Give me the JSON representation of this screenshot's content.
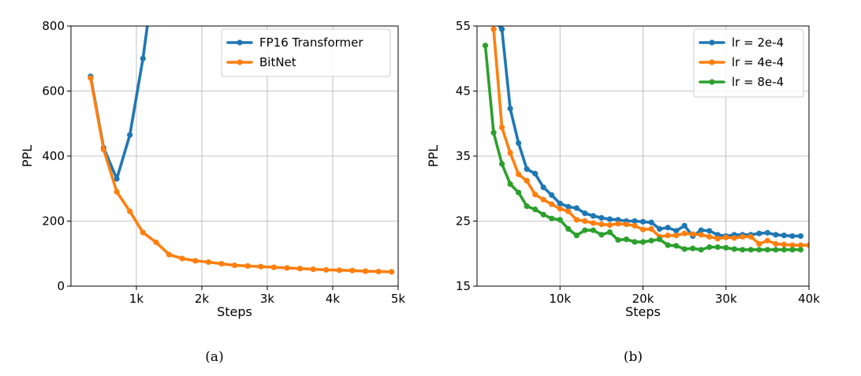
{
  "chart_data": [
    {
      "type": "line",
      "caption": "(a)",
      "xlabel": "Steps",
      "ylabel": "PPL",
      "xlim": [
        0,
        5000
      ],
      "ylim": [
        0,
        800
      ],
      "xticks": [
        1000,
        2000,
        3000,
        4000,
        5000
      ],
      "xtick_labels": [
        "1k",
        "2k",
        "3k",
        "4k",
        "5k"
      ],
      "yticks": [
        0,
        200,
        400,
        600,
        800
      ],
      "ytick_labels": [
        "0",
        "200",
        "400",
        "600",
        "800"
      ],
      "grid": true,
      "legend_position": "top-right",
      "series": [
        {
          "name": "FP16 Transformer",
          "color": "#1f77b4",
          "x": [
            300,
            500,
            700,
            900,
            1100,
            1300
          ],
          "y": [
            645,
            425,
            330,
            465,
            700,
            1000
          ]
        },
        {
          "name": "BitNet",
          "color": "#ff7f0e",
          "x": [
            300,
            500,
            700,
            900,
            1100,
            1300,
            1500,
            1700,
            1900,
            2100,
            2300,
            2500,
            2700,
            2900,
            3100,
            3300,
            3500,
            3700,
            3900,
            4100,
            4300,
            4500,
            4700,
            4900
          ],
          "y": [
            640,
            420,
            290,
            230,
            165,
            135,
            97,
            85,
            78,
            74,
            69,
            64,
            62,
            60,
            58,
            56,
            54,
            52,
            50,
            49,
            48,
            46,
            45,
            44
          ]
        }
      ]
    },
    {
      "type": "line",
      "caption": "(b)",
      "xlabel": "Steps",
      "ylabel": "PPL",
      "xlim": [
        0,
        40000
      ],
      "ylim": [
        15,
        55
      ],
      "xticks": [
        10000,
        20000,
        30000,
        40000
      ],
      "xtick_labels": [
        "10k",
        "20k",
        "30k",
        "40k"
      ],
      "yticks": [
        15,
        25,
        35,
        45,
        55
      ],
      "ytick_labels": [
        "15",
        "25",
        "35",
        "45",
        "55"
      ],
      "grid": true,
      "legend_position": "top-right",
      "series": [
        {
          "name": "lr = 2e-4",
          "color": "#1f77b4",
          "x": [
            2000,
            3000,
            4000,
            5000,
            6000,
            7000,
            8000,
            9000,
            10000,
            11000,
            12000,
            13000,
            14000,
            15000,
            16000,
            17000,
            18000,
            19000,
            20000,
            21000,
            22000,
            23000,
            24000,
            25000,
            26000,
            27000,
            28000,
            29000,
            30000,
            31000,
            32000,
            33000,
            34000,
            35000,
            36000,
            37000,
            38000,
            39000
          ],
          "y": [
            56,
            54.5,
            42.3,
            37.0,
            33.0,
            32.3,
            30.2,
            29.0,
            27.7,
            27.2,
            27.0,
            26.2,
            25.8,
            25.5,
            25.3,
            25.2,
            25.0,
            25.0,
            24.9,
            24.8,
            23.8,
            24.0,
            23.5,
            24.3,
            22.7,
            23.6,
            23.5,
            22.9,
            22.7,
            22.9,
            22.9,
            22.9,
            23.1,
            23.2,
            22.9,
            22.8,
            22.7,
            22.7
          ]
        },
        {
          "name": "lr = 4e-4",
          "color": "#ff7f0e",
          "x": [
            2000,
            3000,
            4000,
            5000,
            6000,
            7000,
            8000,
            9000,
            10000,
            11000,
            12000,
            13000,
            14000,
            15000,
            16000,
            17000,
            18000,
            19000,
            20000,
            21000,
            22000,
            23000,
            24000,
            25000,
            26000,
            27000,
            28000,
            29000,
            30000,
            31000,
            32000,
            33000,
            34000,
            35000,
            36000,
            37000,
            38000,
            39000,
            40000
          ],
          "y": [
            54.5,
            39.4,
            35.5,
            32.2,
            31.2,
            29.1,
            28.3,
            27.6,
            26.9,
            26.5,
            25.2,
            25.0,
            24.7,
            24.5,
            24.4,
            24.6,
            24.5,
            24.3,
            23.7,
            23.8,
            22.6,
            22.8,
            22.8,
            23.1,
            23.0,
            22.9,
            22.6,
            22.3,
            22.5,
            22.4,
            22.6,
            22.6,
            21.5,
            22.0,
            21.5,
            21.4,
            21.3,
            21.3,
            21.3
          ]
        },
        {
          "name": "lr = 8e-4",
          "color": "#2ca02c",
          "x": [
            1000,
            2000,
            3000,
            4000,
            5000,
            6000,
            7000,
            8000,
            9000,
            10000,
            11000,
            12000,
            13000,
            14000,
            15000,
            16000,
            17000,
            18000,
            19000,
            20000,
            21000,
            22000,
            23000,
            24000,
            25000,
            26000,
            27000,
            28000,
            29000,
            30000,
            31000,
            32000,
            33000,
            34000,
            35000,
            36000,
            37000,
            38000,
            39000
          ],
          "y": [
            52.0,
            38.6,
            33.8,
            30.7,
            29.4,
            27.3,
            26.8,
            26.0,
            25.4,
            25.2,
            23.8,
            22.8,
            23.6,
            23.6,
            22.9,
            23.3,
            22.1,
            22.2,
            21.8,
            21.8,
            22.0,
            22.2,
            21.3,
            21.2,
            20.7,
            20.8,
            20.6,
            21.0,
            21.0,
            20.9,
            20.7,
            20.6,
            20.6,
            20.6,
            20.6,
            20.6,
            20.6,
            20.6,
            20.6
          ]
        }
      ]
    }
  ]
}
